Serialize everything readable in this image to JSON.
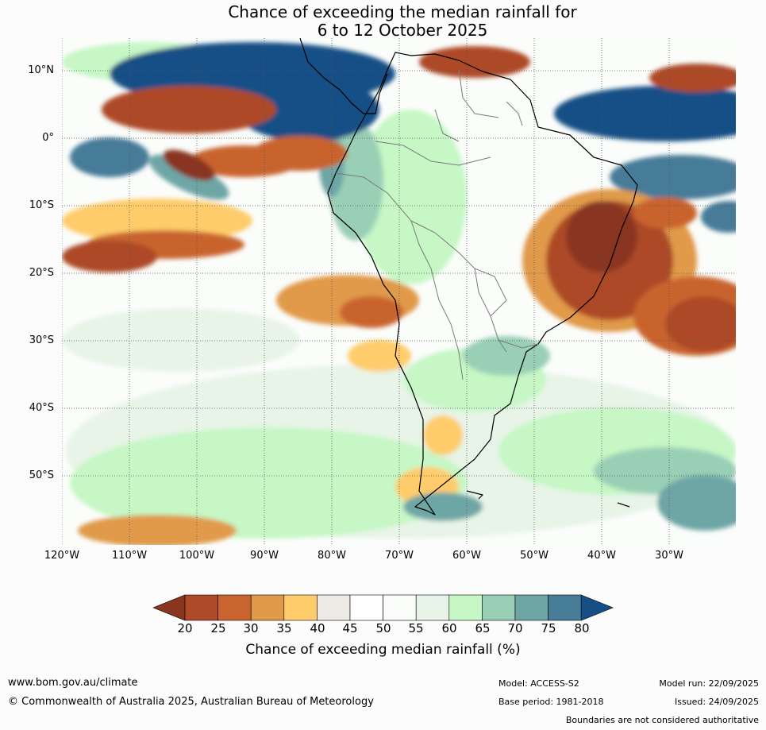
{
  "title_line1": "Chance of exceeding the median rainfall for",
  "title_line2": "6 to 12 October 2025",
  "map": {
    "lon_labels": [
      "120°W",
      "110°W",
      "100°W",
      "90°W",
      "80°W",
      "70°W",
      "60°W",
      "50°W",
      "40°W",
      "30°W"
    ],
    "lat_labels": [
      "10°N",
      "0°",
      "10°S",
      "20°S",
      "30°S",
      "40°S",
      "50°S"
    ],
    "gridlines": "dotted"
  },
  "colorbar": {
    "title": "Chance of exceeding median rainfall (%)",
    "ticks": [
      "20",
      "25",
      "30",
      "35",
      "40",
      "45",
      "50",
      "55",
      "60",
      "65",
      "70",
      "75",
      "80"
    ],
    "colors": [
      "#8a3520",
      "#ad4a27",
      "#c9642e",
      "#e09a4a",
      "#fecc6b",
      "#eeebe6",
      "#ffffff",
      "#fafcfa",
      "#e7f4e7",
      "#c6f7c5",
      "#99cfb5",
      "#6ea6a6",
      "#467c98",
      "#164f85"
    ],
    "extend": "both"
  },
  "footer": {
    "website": "www.bom.gov.au/climate",
    "copyright": "© Commonwealth of Australia 2025, Australian Bureau of Meteorology",
    "model": "Model: ACCESS-S2",
    "base_period": "Base period: 1981-2018",
    "model_run": "Model run: 22/09/2025",
    "issued": "Issued: 24/09/2025",
    "disclaimer": "Boundaries are not considered authoritative"
  }
}
